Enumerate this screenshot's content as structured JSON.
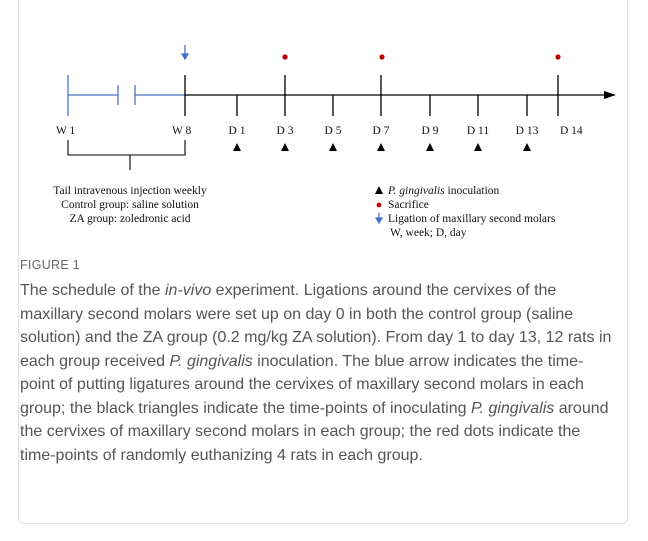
{
  "figure": {
    "timeline": {
      "weeks": [
        "W 1",
        "W 8"
      ],
      "days": [
        "D 1",
        "D 3",
        "D 5",
        "D 7",
        "D 9",
        "D 11",
        "D 13",
        "D 14"
      ]
    },
    "left_note": [
      "Tail intravenous injection weekly",
      "Control group: saline solution",
      "ZA group: zoledronic acid"
    ],
    "legend": [
      [
        {
          "text": "P. gingivalis",
          "italic": true
        },
        {
          "text": " inoculation",
          "italic": false
        }
      ],
      [
        {
          "text": "Sacrifice",
          "italic": false
        }
      ],
      [
        {
          "text": "Ligation of maxillary second molars",
          "italic": false
        }
      ],
      [
        {
          "text": "W, week; D, day",
          "italic": false
        }
      ]
    ],
    "label": "FIGURE 1",
    "caption": [
      {
        "text": "The schedule of the ",
        "italic": false
      },
      {
        "text": "in-vivo",
        "italic": true
      },
      {
        "text": " experiment. Ligations around the cervixes of the maxillary second molars were set up on day 0 in both the control group (saline solution) and the ZA group (0.2 mg/kg ZA solution). From day 1 to day 13, 12 rats in each group received ",
        "italic": false
      },
      {
        "text": "P. gingivalis",
        "italic": true
      },
      {
        "text": " inoculation. The blue arrow indicates the time-point of putting ligatures around the cervixes of maxillary second molars in each group; the black triangles indicate the time-points of inoculating ",
        "italic": false
      },
      {
        "text": "P. gingivalis",
        "italic": true
      },
      {
        "text": " around the cervixes of maxillary second molars in each group; the red dots indicate the time-points of randomly euthanizing 4 rats in each group.",
        "italic": false
      }
    ]
  }
}
